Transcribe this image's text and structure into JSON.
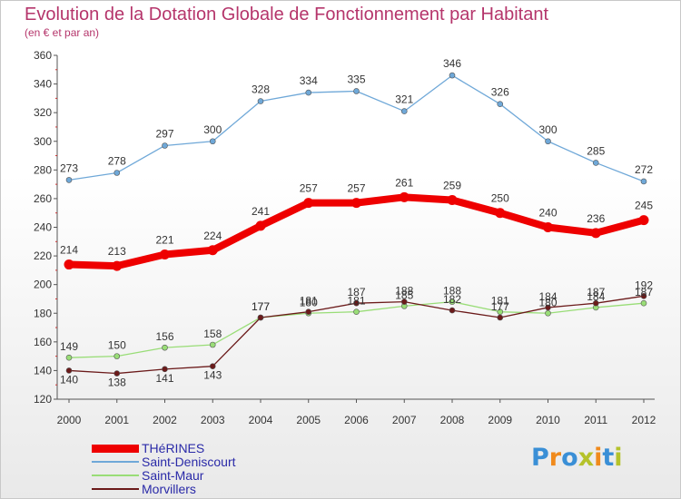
{
  "chart_data": {
    "type": "line",
    "title": "Evolution de la Dotation Globale de Fonctionnement par Habitant",
    "subtitle": "(en € et par an)",
    "x": [
      "2000",
      "2001",
      "2002",
      "2003",
      "2004",
      "2005",
      "2006",
      "2007",
      "2008",
      "2009",
      "2010",
      "2011",
      "2012"
    ],
    "ylim": [
      120,
      360
    ],
    "yticks": [
      120,
      140,
      160,
      180,
      200,
      220,
      240,
      260,
      280,
      300,
      320,
      340,
      360
    ],
    "grid": false,
    "legend_position": "bottom-left",
    "series": [
      {
        "name": "THéRINES",
        "color": "#ee0000",
        "values": [
          214,
          213,
          221,
          224,
          241,
          257,
          257,
          261,
          259,
          250,
          240,
          236,
          245
        ]
      },
      {
        "name": "Saint-Deniscourt",
        "color": "#6fa8d8",
        "values": [
          273,
          278,
          297,
          300,
          328,
          334,
          335,
          321,
          346,
          326,
          300,
          285,
          272
        ]
      },
      {
        "name": "Saint-Maur",
        "color": "#99dd77",
        "values": [
          149,
          150,
          156,
          158,
          177,
          180,
          181,
          185,
          188,
          181,
          180,
          184,
          187
        ]
      },
      {
        "name": "Morvillers",
        "color": "#6b1a1a",
        "values": [
          140,
          138,
          141,
          143,
          177,
          181,
          187,
          188,
          182,
          177,
          184,
          187,
          192
        ]
      }
    ]
  },
  "logo": {
    "text": "Proxiti"
  }
}
